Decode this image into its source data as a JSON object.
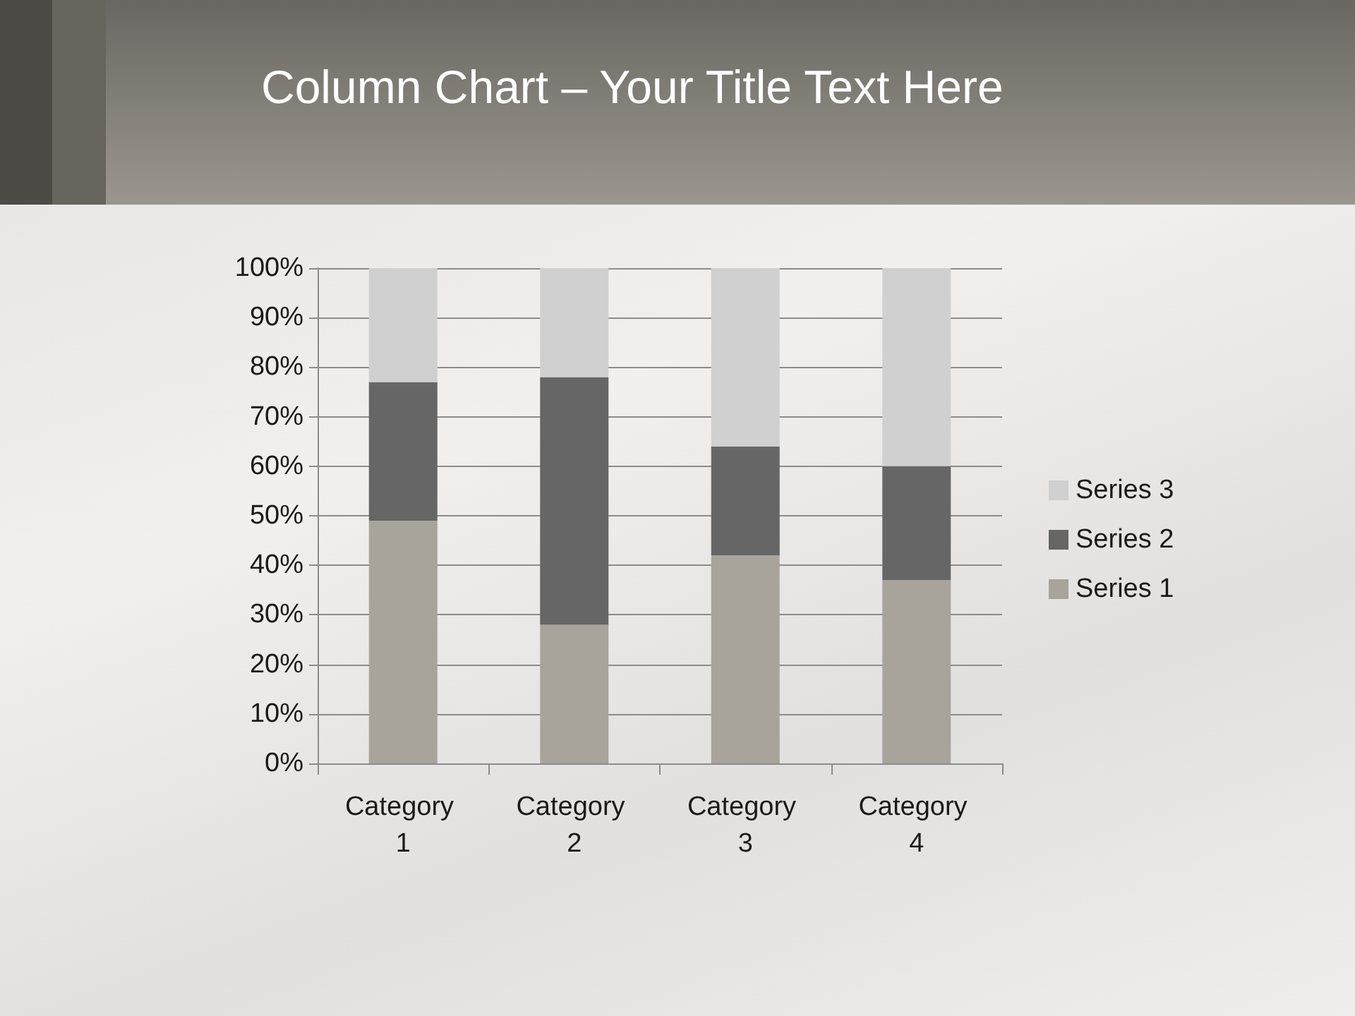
{
  "chart_data": {
    "type": "bar",
    "title": "Column Chart – Your Title Text Here",
    "stacked": true,
    "categories": [
      "Category 1",
      "Category 2",
      "Category 3",
      "Category 4"
    ],
    "series": [
      {
        "name": "Series 1",
        "color": "#a8a49c",
        "values": [
          49,
          28,
          42,
          37
        ]
      },
      {
        "name": "Series 2",
        "color": "#666666",
        "values": [
          28,
          50,
          22,
          23
        ]
      },
      {
        "name": "Series 3",
        "color": "#d0d0d0",
        "values": [
          23,
          22,
          36,
          40
        ]
      }
    ],
    "ylim": [
      0,
      100
    ],
    "yticks": [
      {
        "value": 0,
        "label": "0%"
      },
      {
        "value": 10,
        "label": "10%"
      },
      {
        "value": 20,
        "label": "20%"
      },
      {
        "value": 30,
        "label": "30%"
      },
      {
        "value": 40,
        "label": "40%"
      },
      {
        "value": 50,
        "label": "50%"
      },
      {
        "value": 60,
        "label": "60%"
      },
      {
        "value": 70,
        "label": "70%"
      },
      {
        "value": 80,
        "label": "80%"
      },
      {
        "value": 90,
        "label": "90%"
      },
      {
        "value": 100,
        "label": "100%"
      }
    ],
    "grid": "y",
    "legend": "right"
  }
}
